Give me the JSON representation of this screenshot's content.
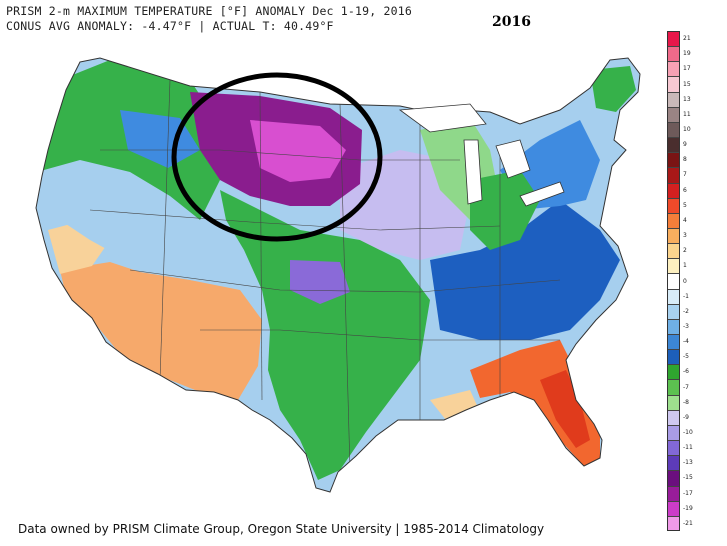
{
  "header": {
    "line1": "PRISM 2-m MAXIMUM TEMPERATURE [°F] ANOMALY Dec 1-19, 2016",
    "line2": "CONUS AVG ANOMALY: -4.47°F | ACTUAL T: 40.49°F"
  },
  "year_label": "2016",
  "footer": "Data owned by PRISM Climate Group, Oregon State University | 1985-2014 Climatology",
  "legend": {
    "labels": [
      "21",
      "19",
      "17",
      "15",
      "13",
      "11",
      "10",
      "9",
      "8",
      "7",
      "6",
      "5",
      "4",
      "3",
      "2",
      "1",
      "0",
      "-1",
      "-2",
      "-3",
      "-4",
      "-5",
      "-6",
      "-7",
      "-8",
      "-9",
      "-10",
      "-11",
      "-13",
      "-15",
      "-17",
      "-19",
      "-21"
    ],
    "colors": [
      "#e8174a",
      "#f06a8a",
      "#f7a1b4",
      "#f7c8d2",
      "#c9b8b8",
      "#9a8484",
      "#6e5a5a",
      "#4a2e2e",
      "#7a1414",
      "#a81818",
      "#d42020",
      "#f04a2a",
      "#f57e3a",
      "#f9ae5e",
      "#fcd58e",
      "#fdf0c0",
      "#ffffff",
      "#d8ecf8",
      "#a8d2f0",
      "#6fb0e6",
      "#3c86d4",
      "#1d5fba",
      "#2fa52f",
      "#5cc150",
      "#9ee08e",
      "#cfc8f0",
      "#a99ce6",
      "#8268d6",
      "#5d3bb8",
      "#6b0f7e",
      "#981c9a",
      "#cc3cc8",
      "#f09ae8"
    ]
  },
  "map": {
    "circle_color": "#000000",
    "region_colors": {
      "water": "#ffffff",
      "orange": "#f6a96b",
      "tan": "#f8d29a",
      "lightblue": "#a6cfee",
      "blue": "#3f8be0",
      "darkblue": "#1d5fc0",
      "green": "#36b14a",
      "lightgreen": "#8fd88a",
      "lavender": "#c6bdf0",
      "violet": "#8a6ad8",
      "purple": "#8a1d8e",
      "magenta": "#d84fd0",
      "red": "#e03b1c",
      "redorange": "#f2672f"
    }
  }
}
